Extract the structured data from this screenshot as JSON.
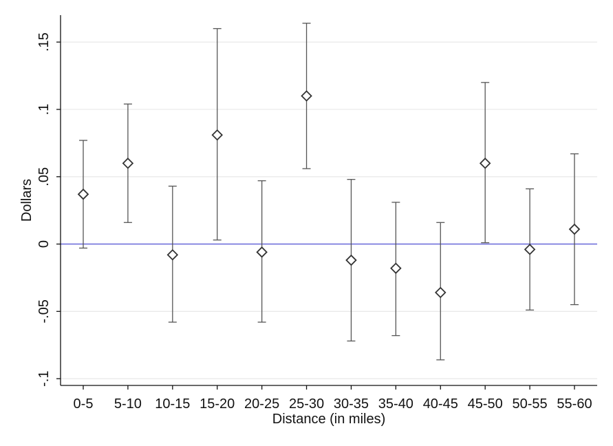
{
  "chart_data": {
    "type": "scatter",
    "title": "",
    "xlabel": "Distance (in miles)",
    "ylabel": "Dollars",
    "categories": [
      "0-5",
      "5-10",
      "10-15",
      "15-20",
      "20-25",
      "25-30",
      "30-35",
      "35-40",
      "40-45",
      "45-50",
      "50-55",
      "55-60"
    ],
    "estimates": [
      0.037,
      0.06,
      -0.008,
      0.081,
      -0.006,
      0.11,
      -0.012,
      -0.018,
      -0.036,
      0.06,
      -0.004,
      0.011
    ],
    "ci_low": [
      -0.003,
      0.016,
      -0.058,
      0.003,
      -0.058,
      0.056,
      -0.072,
      -0.068,
      -0.086,
      0.001,
      -0.049,
      -0.045
    ],
    "ci_high": [
      0.077,
      0.104,
      0.043,
      0.16,
      0.047,
      0.164,
      0.048,
      0.031,
      0.016,
      0.12,
      0.041,
      0.067
    ],
    "ylim": [
      -0.105,
      0.17
    ],
    "yticks": [
      -0.1,
      -0.05,
      0,
      0.05,
      0.1,
      0.15
    ],
    "ytick_labels": [
      "-.1",
      "-.05",
      "0",
      ".05",
      ".1",
      ".15"
    ],
    "reference_line": 0,
    "grid": true,
    "colors": {
      "marker": "#333333",
      "error_bar": "#555555",
      "reference_line": "#5b5bd6",
      "grid": "#e8e8e8",
      "axis": "#111111"
    }
  }
}
